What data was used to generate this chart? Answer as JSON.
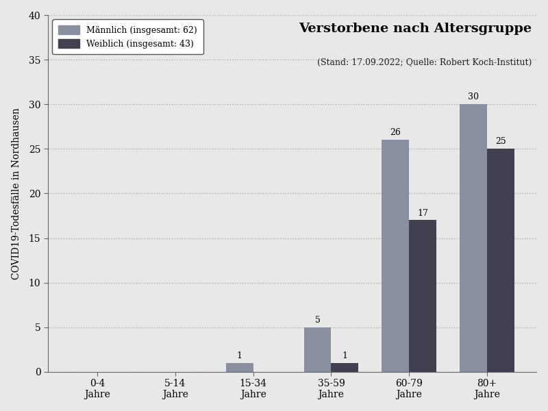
{
  "categories": [
    "0-4\nJahre",
    "5-14\nJahre",
    "15-34\nJahre",
    "35-59\nJahre",
    "60-79\nJahre",
    "80+\nJahre"
  ],
  "maennlich": [
    0,
    0,
    1,
    5,
    26,
    30
  ],
  "weiblich": [
    0,
    0,
    0,
    1,
    17,
    25
  ],
  "maennlich_total": 62,
  "weiblich_total": 43,
  "bar_color_maennlich": "#8a8fa0",
  "bar_color_weiblich": "#404050",
  "title": "Verstorbene nach Altersgruppe",
  "subtitle": "(Stand: 17.09.2022; Quelle: Robert Koch-Institut)",
  "ylabel": "COVID19-Todesfälle in Nordhausen",
  "ylim": [
    0,
    40
  ],
  "yticks": [
    0,
    5,
    10,
    15,
    20,
    25,
    30,
    35,
    40
  ],
  "background_color": "#e8e8e8",
  "plot_bg_color": "#e8e8e8",
  "title_fontsize": 14,
  "subtitle_fontsize": 9,
  "axis_label_fontsize": 10,
  "tick_fontsize": 10,
  "bar_width": 0.35,
  "annotation_fontsize": 9,
  "legend_fontsize": 9
}
